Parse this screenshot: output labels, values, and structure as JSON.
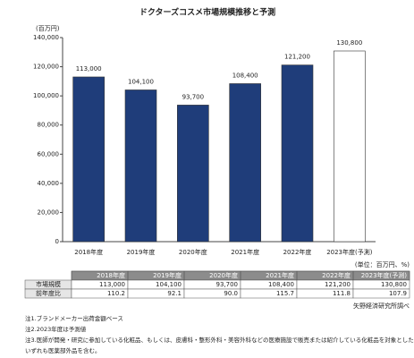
{
  "chart_data": {
    "type": "bar",
    "title": "ドクターズコスメ市場規模推移と予測",
    "ylabel": "(百万円)",
    "categories": [
      "2018年度",
      "2019年度",
      "2020年度",
      "2021年度",
      "2022年度",
      "2023年度(予測)"
    ],
    "values": [
      113000,
      104100,
      93700,
      108400,
      121200,
      130800
    ],
    "value_labels": [
      "113,000",
      "104,100",
      "93,700",
      "108,400",
      "121,200",
      "130,800"
    ],
    "color": "#1f3d7a",
    "forecast_color": "#ffffff",
    "ylim": [
      0,
      140000
    ],
    "yticks": [
      0,
      {
        "value": 20000,
        "label": "20,000"
      },
      {
        "value": 40000,
        "label": "40,000"
      },
      {
        "value": 60000,
        "label": "60,000"
      },
      {
        "value": 80000,
        "label": "80,000"
      },
      {
        "value": 100000,
        "label": "100,000"
      },
      {
        "value": 120000,
        "label": "120,000"
      },
      {
        "value": 140000,
        "label": "140,000"
      }
    ],
    "grid": false
  },
  "table": {
    "unit": "(単位：百万円、%)",
    "header": [
      "2018年度",
      "2019年度",
      "2020年度",
      "2021年度",
      "2022年度",
      "2023年度(予測)"
    ],
    "rows": [
      [
        "市場規模",
        "113,000",
        "104,100",
        "93,700",
        "108,400",
        "121,200",
        "130,800"
      ],
      [
        "前年度比",
        "110.2",
        "92.1",
        "90.0",
        "115.7",
        "111.8",
        "107.9"
      ]
    ]
  },
  "source": "矢野経済研究所調べ",
  "notes": [
    "注1.ブランドメーカー出荷金額ベース",
    "注2.2023年度は予測値",
    "注3.医師が開発・研究に参加している化粧品、もしくは、皮膚科・整形外科・美容外科などの医療施設で販売または紹介している化粧品を対象とした。",
    "いずれも医薬部外品を含む。"
  ]
}
